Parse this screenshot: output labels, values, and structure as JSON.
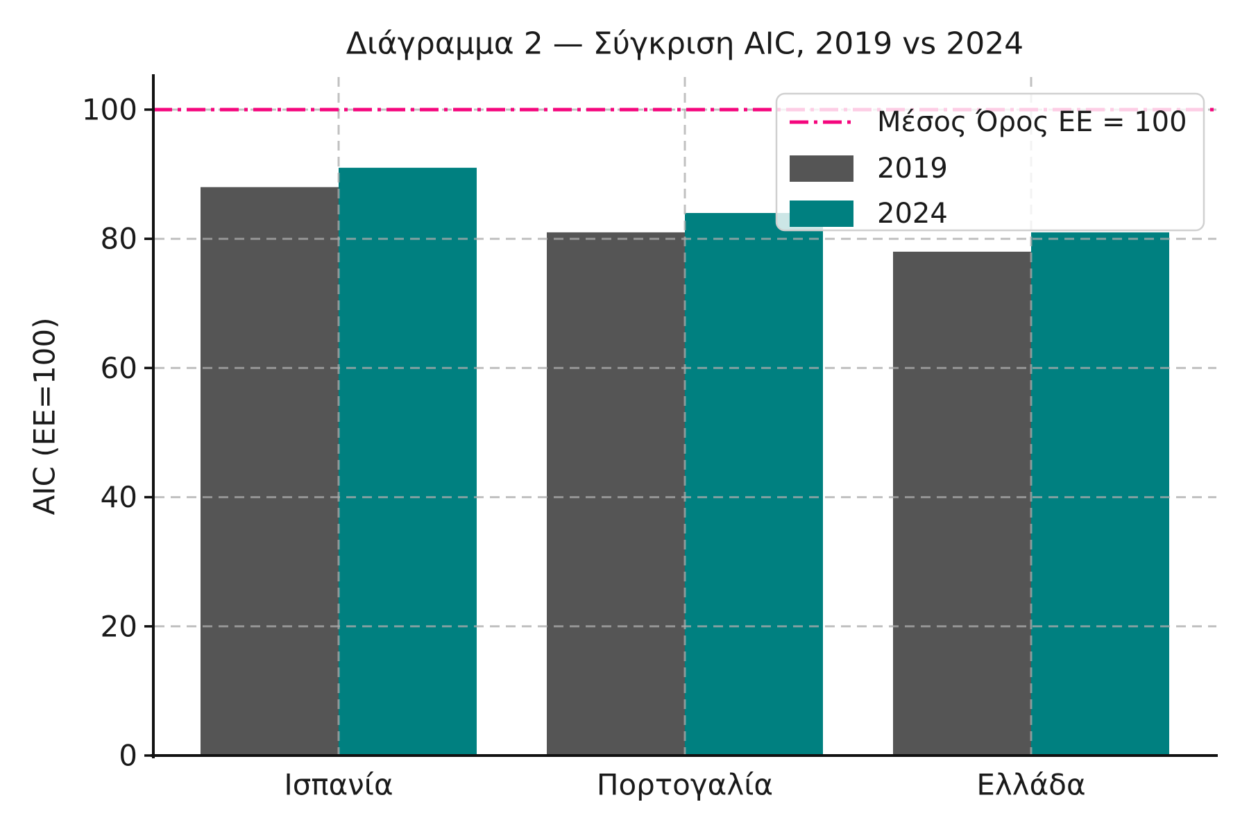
{
  "chart_data": {
    "type": "bar",
    "title": "Διάγραμμα 2 — Σύγκριση AIC, 2019 vs 2024",
    "ylabel": "AIC (ΕΕ=100)",
    "xlabel": "",
    "categories": [
      "Ισπανία",
      "Πορτογαλία",
      "Ελλάδα"
    ],
    "series": [
      {
        "name": "2019",
        "color": "#555555",
        "values": [
          88,
          81,
          78
        ]
      },
      {
        "name": "2024",
        "color": "#008080",
        "values": [
          91,
          84,
          81
        ]
      }
    ],
    "reference_line": {
      "label": "Μέσος Όρος ΕΕ = 100",
      "value": 100,
      "color": "#f4067d",
      "style": "dashdot"
    },
    "ylim": [
      0,
      105
    ],
    "yticks": [
      0,
      20,
      40,
      60,
      80,
      100
    ],
    "grid": true,
    "grid_style": "dashed",
    "legend_position": "upper right",
    "background": "#ffffff"
  }
}
